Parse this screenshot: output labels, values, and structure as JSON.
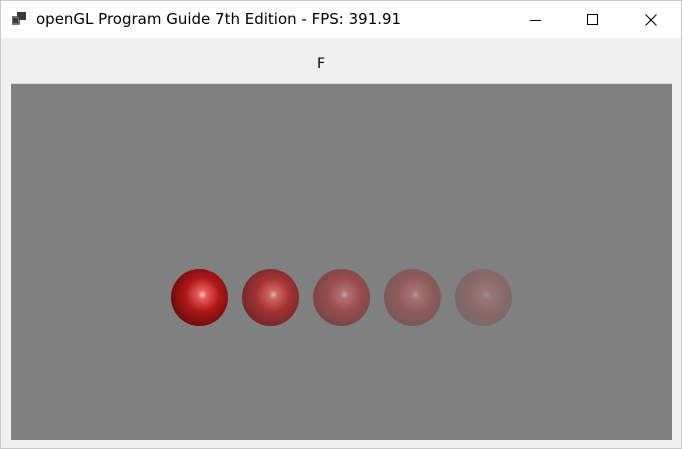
{
  "window": {
    "title": "openGL Program Guide 7th Edition - FPS: 391.91",
    "icon": "app-window-icon"
  },
  "caption_buttons": {
    "minimize_icon": "minimize-icon",
    "maximize_icon": "maximize-icon",
    "close_icon": "close-icon"
  },
  "toolbar": {
    "label": "F"
  },
  "scene": {
    "background_color": "#808080",
    "sphere_color": "#b01818",
    "spheres": [
      {
        "opacity": 1.0
      },
      {
        "opacity": 0.75
      },
      {
        "opacity": 0.5
      },
      {
        "opacity": 0.35
      },
      {
        "opacity": 0.22
      }
    ]
  }
}
